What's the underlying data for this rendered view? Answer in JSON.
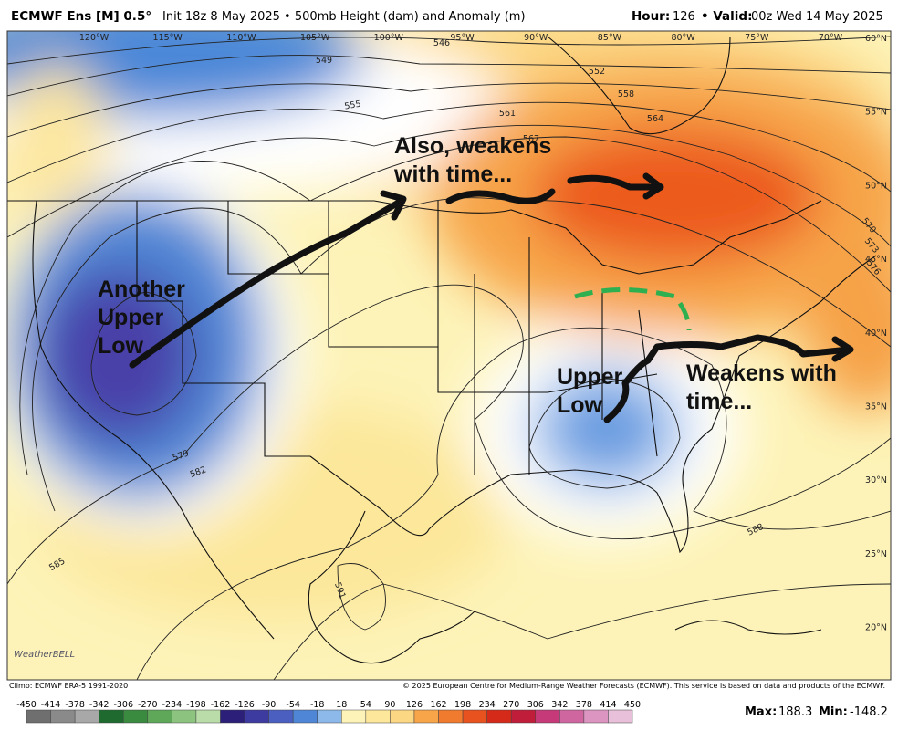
{
  "header": {
    "model": "ECMWF Ens [M] 0.5°",
    "subtitle": "Init 18z 8 May 2025 • 500mb Height (dam) and Anomaly (m)",
    "hour_label": "Hour:",
    "hour": "126",
    "valid_label": "• Valid:",
    "valid": "00z Wed 14 May 2025"
  },
  "map": {
    "longitudes": [
      "120°W",
      "115°W",
      "110°W",
      "105°W",
      "100°W",
      "95°W",
      "90°W",
      "85°W",
      "80°W",
      "75°W",
      "70°W"
    ],
    "latitudes": [
      "60°N",
      "55°N",
      "50°N",
      "45°N",
      "40°N",
      "35°N",
      "30°N",
      "25°N",
      "20°N"
    ],
    "contour_labels": [
      "546",
      "549",
      "552",
      "555",
      "558",
      "561",
      "564",
      "567",
      "570",
      "573",
      "576",
      "579",
      "582",
      "585",
      "588",
      "591"
    ],
    "annotations": [
      {
        "lines": [
          "Also, weakens",
          "with time..."
        ]
      },
      {
        "lines": [
          "Another",
          "Upper",
          "Low"
        ]
      },
      {
        "lines": [
          "Upper",
          "Low"
        ]
      },
      {
        "lines": [
          "Weakens with",
          "time..."
        ]
      }
    ],
    "logo": "WeatherBELL"
  },
  "footer": {
    "climo": "Climo: ECMWF ERA-5 1991-2020",
    "copyright": "© 2025 European Centre for Medium-Range Weather Forecasts (ECMWF). This service is based on data and products of the ECMWF.",
    "colorbar_ticks": [
      "-450",
      "-414",
      "-378",
      "-342",
      "-306",
      "-270",
      "-234",
      "-198",
      "-162",
      "-126",
      "-90",
      "-54",
      "-18",
      "18",
      "54",
      "90",
      "126",
      "162",
      "198",
      "234",
      "270",
      "306",
      "342",
      "378",
      "414",
      "450"
    ],
    "max_label": "Max:",
    "max": "188.3",
    "min_label": "Min:",
    "min": "-148.2"
  }
}
